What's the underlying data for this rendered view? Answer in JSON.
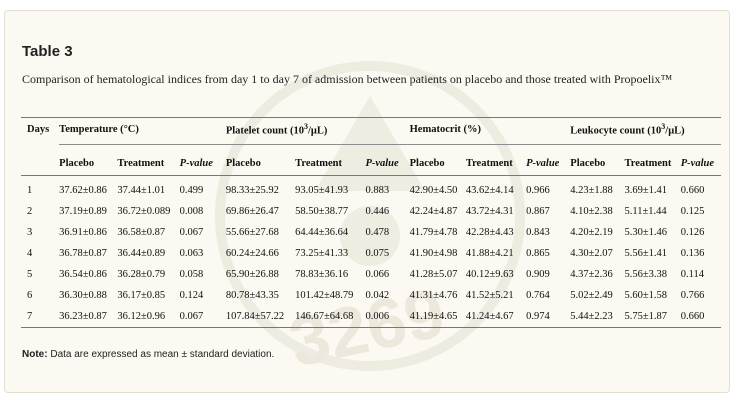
{
  "title": "Table 3",
  "caption": "Comparison of hematological indices from day 1 to day 7 of admission between patients on placebo and those treated with Propoelix™",
  "columns": {
    "days": "Days",
    "groups": [
      {
        "label_html": "Temperature (°C)"
      },
      {
        "label_prefix": "Platelet count (10",
        "label_sup": "3",
        "label_suffix": "/μL)"
      },
      {
        "label_html": "Hematocrit (%)"
      },
      {
        "label_prefix": "Leukocyte count (10",
        "label_sup": "3",
        "label_suffix": "/μL)"
      }
    ],
    "sub": [
      "Placebo",
      "Treatment",
      "P-value"
    ]
  },
  "rows": [
    [
      "1",
      "37.62±0.86",
      "37.44±1.01",
      "0.499",
      "98.33±25.92",
      "93.05±41.93",
      "0.883",
      "42.90±4.50",
      "43.62±4.14",
      "0.966",
      "4.23±1.88",
      "3.69±1.41",
      "0.660"
    ],
    [
      "2",
      "37.19±0.89",
      "36.72±0.089",
      "0.008",
      "69.86±26.47",
      "58.50±38.77",
      "0.446",
      "42.24±4.87",
      "43.72±4.31",
      "0.867",
      "4.10±2.38",
      "5.11±1.44",
      "0.125"
    ],
    [
      "3",
      "36.91±0.86",
      "36.58±0.87",
      "0.067",
      "55.66±27.68",
      "64.44±36.64",
      "0.478",
      "41.79±4.78",
      "42.28±4.43",
      "0.843",
      "4.20±2.19",
      "5.30±1.46",
      "0.126"
    ],
    [
      "4",
      "36.78±0.87",
      "36.44±0.89",
      "0.063",
      "60.24±24.66",
      "73.25±41.33",
      "0.075",
      "41.90±4.98",
      "41.88±4.21",
      "0.865",
      "4.30±2.07",
      "5.56±1.41",
      "0.136"
    ],
    [
      "5",
      "36.54±0.86",
      "36.28±0.79",
      "0.058",
      "65.90±26.88",
      "78.83±36.16",
      "0.066",
      "41.28±5.07",
      "40.12±9.63",
      "0.909",
      "4.37±2.36",
      "5.56±3.38",
      "0.114"
    ],
    [
      "6",
      "36.30±0.88",
      "36.17±0.85",
      "0.124",
      "80.78±43.35",
      "101.42±48.79",
      "0.042",
      "41.31±4.76",
      "41.52±5.21",
      "0.764",
      "5.02±2.49",
      "5.60±1.58",
      "0.766"
    ],
    [
      "7",
      "36.23±0.87",
      "36.12±0.96",
      "0.067",
      "107.84±57.22",
      "146.67±64.68",
      "0.006",
      "41.19±4.65",
      "41.24±4.67",
      "0.974",
      "5.44±2.23",
      "5.75±1.87",
      "0.660"
    ]
  ],
  "note": {
    "label": "Note:",
    "text": " Data are expressed as mean ± standard deviation."
  },
  "watermark": {
    "text": "3269"
  }
}
